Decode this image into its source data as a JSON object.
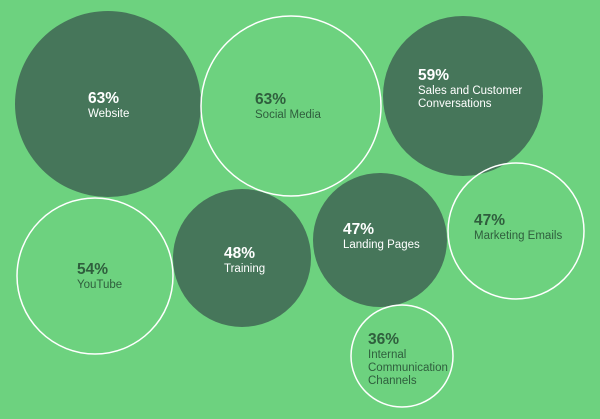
{
  "colors": {
    "background": "#6dd27f",
    "bubble_fill": "#46765a",
    "bubble_outline": "#ffffff",
    "outline_text": "#2f5e3d",
    "filled_text": "#ffffff"
  },
  "chart_data": {
    "type": "bubble",
    "unit": "%",
    "items": [
      {
        "label": "Website",
        "value": 63,
        "value_label": "63%",
        "style": "filled"
      },
      {
        "label": "Social Media",
        "value": 63,
        "value_label": "63%",
        "style": "outline"
      },
      {
        "label": "Sales and Customer\nConversations",
        "value": 59,
        "value_label": "59%",
        "style": "filled"
      },
      {
        "label": "YouTube",
        "value": 54,
        "value_label": "54%",
        "style": "outline"
      },
      {
        "label": "Training",
        "value": 48,
        "value_label": "48%",
        "style": "filled"
      },
      {
        "label": "Landing Pages",
        "value": 47,
        "value_label": "47%",
        "style": "filled"
      },
      {
        "label": "Marketing Emails",
        "value": 47,
        "value_label": "47%",
        "style": "outline"
      },
      {
        "label": "Internal\nCommunication\nChannels",
        "value": 36,
        "value_label": "36%",
        "style": "outline"
      }
    ]
  }
}
